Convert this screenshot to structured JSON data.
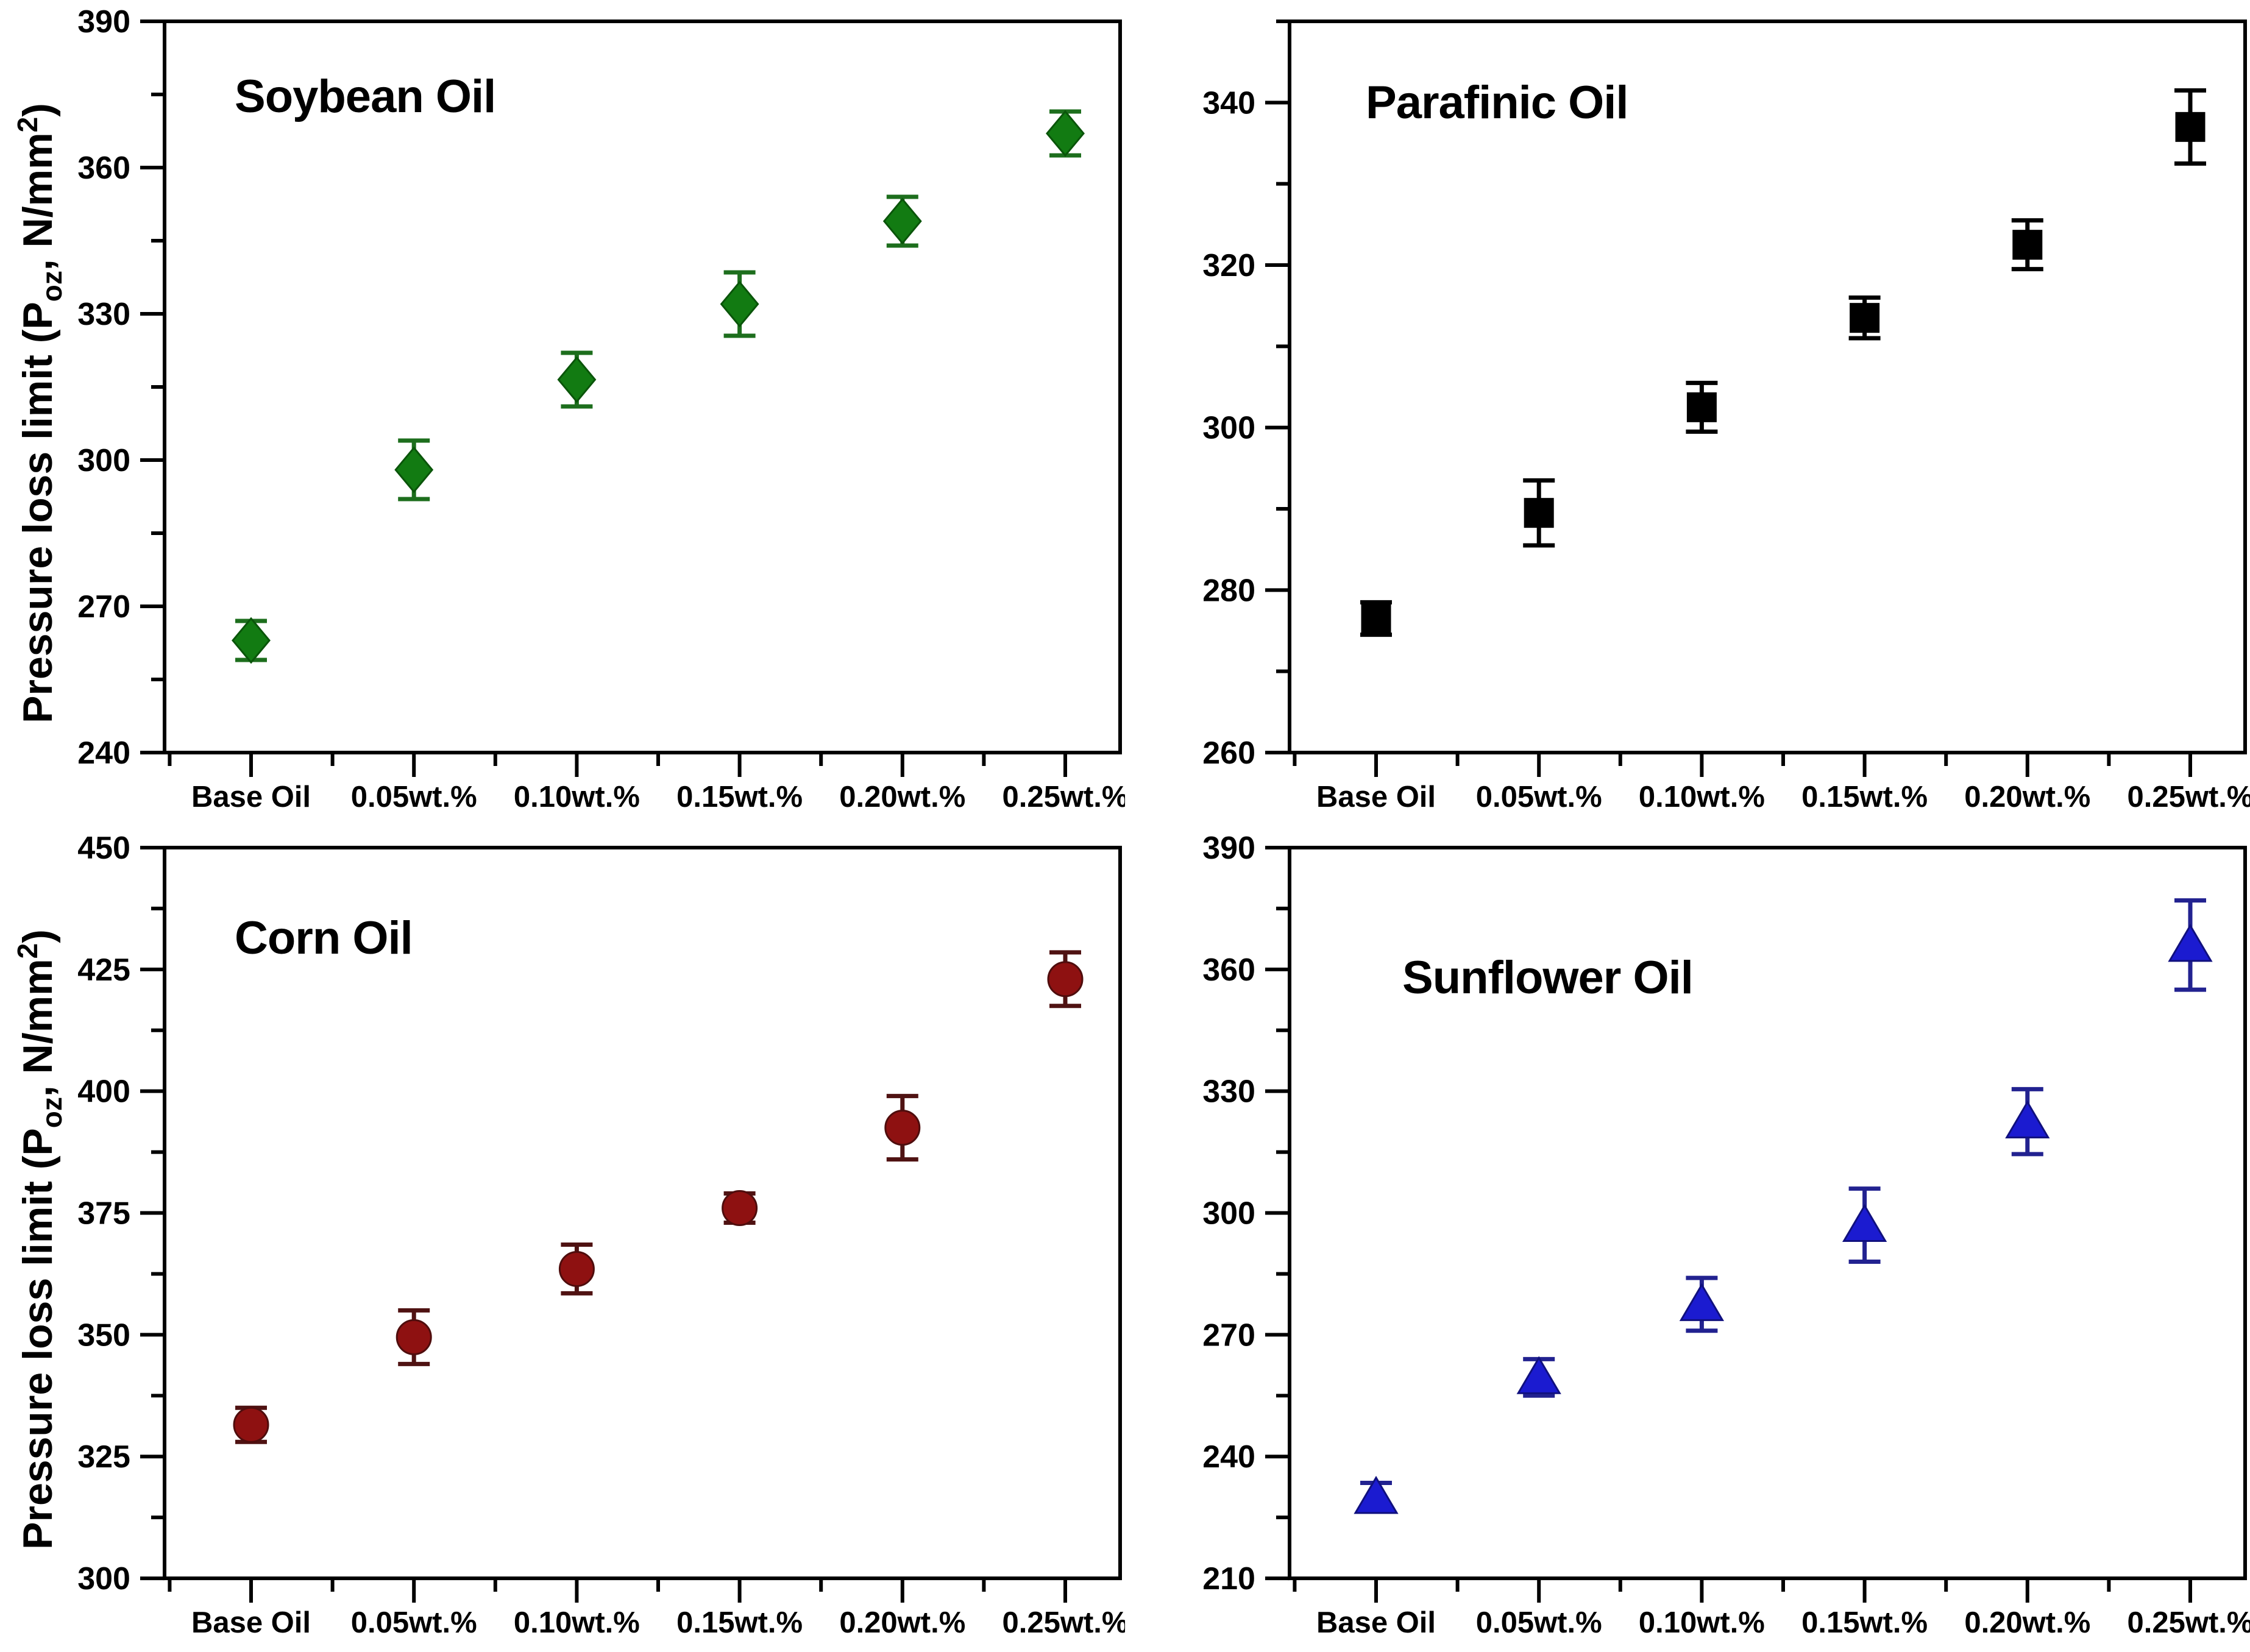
{
  "page": {
    "background": "#ffffff",
    "text_color": "#000000"
  },
  "axis": {
    "categories": [
      "Base Oil",
      "0.05wt.%",
      "0.10wt.%",
      "0.15wt.%",
      "0.20wt.%",
      "0.25wt.%"
    ],
    "y_label": {
      "prefix": "Pressure loss limit (P",
      "sub": "oz",
      "mid": ", N/mm",
      "sup": "2",
      "suffix": ")"
    }
  },
  "chart_data": [
    {
      "type": "scatter",
      "title": "Soybean Oil",
      "position": "top-left",
      "marker": "diamond",
      "marker_color": "#127b12",
      "marker_edge_color": "#0a550a",
      "error_color": "#1d6e1d",
      "categories": [
        "Base Oil",
        "0.05wt.%",
        "0.10wt.%",
        "0.15wt.%",
        "0.20wt.%",
        "0.25wt.%"
      ],
      "values": [
        263,
        298,
        316.5,
        332,
        349,
        367
      ],
      "errors": [
        4,
        6,
        5.5,
        6.5,
        5,
        4.5
      ],
      "xlabel": "",
      "ylabel": "Pressure loss limit (Poz, N/mm2)",
      "ylim": [
        240,
        390
      ],
      "yticks": [
        240,
        270,
        300,
        330,
        360,
        390
      ],
      "grid": false,
      "legend": "none",
      "show_y_title": true,
      "title_top": 115
    },
    {
      "type": "scatter",
      "title": "Parafinic Oil",
      "position": "top-right",
      "marker": "square",
      "marker_color": "#000000",
      "marker_edge_color": "#000000",
      "error_color": "#000000",
      "categories": [
        "Base Oil",
        "0.05wt.%",
        "0.10wt.%",
        "0.15wt.%",
        "0.20wt.%",
        "0.25wt.%"
      ],
      "values": [
        276.5,
        289.5,
        302.5,
        313.5,
        322.5,
        337
      ],
      "errors": [
        2,
        4,
        3,
        2.5,
        3,
        4.5
      ],
      "xlabel": "",
      "ylabel": "",
      "ylim": [
        260,
        350
      ],
      "yticks": [
        260,
        280,
        300,
        320,
        340
      ],
      "grid": false,
      "legend": "none",
      "show_y_title": false,
      "title_top": 125
    },
    {
      "type": "scatter",
      "title": "Corn Oil",
      "position": "bottom-left",
      "marker": "circle",
      "marker_color": "#8e1111",
      "marker_edge_color": "#4f0d0d",
      "error_color": "#4f1212",
      "categories": [
        "Base Oil",
        "0.05wt.%",
        "0.10wt.%",
        "0.15wt.%",
        "0.20wt.%",
        "0.25wt.%"
      ],
      "values": [
        331.5,
        349.5,
        363.5,
        376,
        392.5,
        423
      ],
      "errors": [
        3.5,
        5.5,
        5,
        3,
        6.5,
        5.5
      ],
      "xlabel": "",
      "ylabel": "Pressure loss limit (Poz, N/mm2)",
      "ylim": [
        300,
        450
      ],
      "yticks": [
        300,
        325,
        350,
        375,
        400,
        425,
        450
      ],
      "grid": false,
      "legend": "none",
      "show_y_title": true,
      "title_top": 140
    },
    {
      "type": "scatter",
      "title": "Sunflower Oil",
      "position": "bottom-right",
      "marker": "triangle",
      "marker_color": "#1b1bd0",
      "marker_edge_color": "#10107e",
      "error_color": "#222290",
      "categories": [
        "Base Oil",
        "0.05wt.%",
        "0.10wt.%",
        "0.15wt.%",
        "0.20wt.%",
        "0.25wt.%"
      ],
      "values": [
        230,
        259.5,
        277.5,
        297,
        322.5,
        366
      ],
      "errors": [
        3.5,
        4.5,
        6.5,
        9,
        8,
        11
      ],
      "xlabel": "",
      "ylabel": "",
      "ylim": [
        210,
        390
      ],
      "yticks": [
        210,
        240,
        270,
        300,
        330,
        360,
        390
      ],
      "grid": false,
      "legend": "none",
      "show_y_title": false,
      "title_top": 205
    }
  ]
}
